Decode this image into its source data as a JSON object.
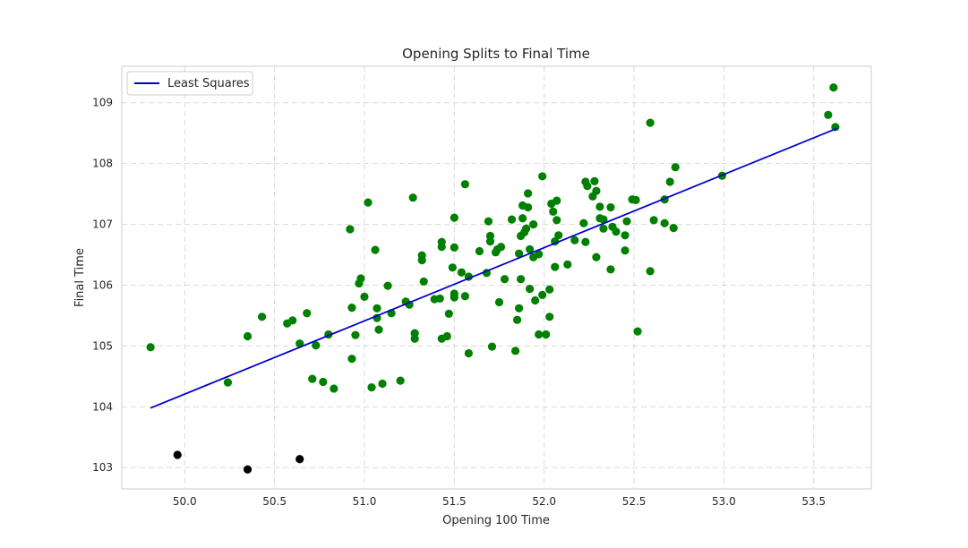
{
  "chart_data": {
    "type": "scatter",
    "title": "Opening Splits to Final Time",
    "xlabel": "Opening 100 Time",
    "ylabel": "Final Time",
    "xlim": [
      49.65,
      53.82
    ],
    "ylim": [
      102.65,
      109.6
    ],
    "xticks": [
      "50.0",
      "50.5",
      "51.0",
      "51.5",
      "52.0",
      "52.5",
      "53.0",
      "53.5"
    ],
    "yticks": [
      "103",
      "104",
      "105",
      "106",
      "107",
      "108",
      "109"
    ],
    "grid": true,
    "legend": {
      "position": "top-left",
      "entries": [
        "Least Squares"
      ]
    },
    "colors": {
      "points": "#008000",
      "outliers": "#000000",
      "fit": "#0000cd",
      "grid": "#d9d9d9",
      "spine": "#cccccc"
    },
    "fit_line": {
      "name": "Least Squares",
      "x": [
        49.81,
        53.63
      ],
      "y": [
        103.98,
        108.58
      ]
    },
    "points": [
      [
        49.81,
        104.98
      ],
      [
        50.24,
        104.4
      ],
      [
        50.35,
        105.16
      ],
      [
        50.43,
        105.48
      ],
      [
        50.57,
        105.37
      ],
      [
        50.6,
        105.42
      ],
      [
        50.64,
        105.04
      ],
      [
        50.68,
        105.54
      ],
      [
        50.71,
        104.46
      ],
      [
        50.73,
        105.01
      ],
      [
        50.77,
        104.41
      ],
      [
        50.8,
        105.19
      ],
      [
        50.83,
        104.3
      ],
      [
        50.92,
        106.92
      ],
      [
        50.93,
        105.63
      ],
      [
        50.93,
        104.79
      ],
      [
        50.95,
        105.18
      ],
      [
        50.97,
        106.03
      ],
      [
        50.98,
        106.11
      ],
      [
        51.0,
        105.81
      ],
      [
        51.02,
        107.36
      ],
      [
        51.04,
        104.32
      ],
      [
        51.06,
        106.58
      ],
      [
        51.07,
        105.62
      ],
      [
        51.07,
        105.46
      ],
      [
        51.08,
        105.27
      ],
      [
        51.1,
        104.38
      ],
      [
        51.13,
        105.99
      ],
      [
        51.15,
        105.54
      ],
      [
        51.2,
        104.43
      ],
      [
        51.23,
        105.73
      ],
      [
        51.25,
        105.68
      ],
      [
        51.27,
        107.44
      ],
      [
        51.28,
        105.21
      ],
      [
        51.28,
        105.12
      ],
      [
        51.32,
        106.49
      ],
      [
        51.32,
        106.41
      ],
      [
        51.33,
        106.06
      ],
      [
        51.39,
        105.77
      ],
      [
        51.42,
        105.78
      ],
      [
        51.43,
        106.71
      ],
      [
        51.43,
        106.63
      ],
      [
        51.43,
        105.12
      ],
      [
        51.46,
        105.16
      ],
      [
        51.47,
        105.53
      ],
      [
        51.49,
        106.29
      ],
      [
        51.5,
        105.86
      ],
      [
        51.5,
        107.11
      ],
      [
        51.5,
        106.62
      ],
      [
        51.5,
        105.8
      ],
      [
        51.54,
        106.21
      ],
      [
        51.56,
        105.82
      ],
      [
        51.56,
        107.66
      ],
      [
        51.58,
        104.88
      ],
      [
        51.58,
        106.14
      ],
      [
        51.64,
        106.56
      ],
      [
        51.68,
        106.2
      ],
      [
        51.69,
        107.05
      ],
      [
        51.7,
        106.81
      ],
      [
        51.7,
        106.72
      ],
      [
        51.71,
        104.99
      ],
      [
        51.73,
        106.54
      ],
      [
        51.74,
        106.59
      ],
      [
        51.75,
        105.72
      ],
      [
        51.76,
        106.63
      ],
      [
        51.78,
        106.1
      ],
      [
        51.82,
        107.08
      ],
      [
        51.84,
        104.92
      ],
      [
        51.85,
        105.43
      ],
      [
        51.86,
        105.62
      ],
      [
        51.86,
        106.52
      ],
      [
        51.87,
        106.1
      ],
      [
        51.87,
        106.81
      ],
      [
        51.88,
        107.1
      ],
      [
        51.88,
        107.31
      ],
      [
        51.89,
        106.87
      ],
      [
        51.9,
        106.93
      ],
      [
        51.91,
        107.28
      ],
      [
        51.91,
        107.51
      ],
      [
        51.92,
        106.59
      ],
      [
        51.92,
        105.94
      ],
      [
        51.94,
        106.46
      ],
      [
        51.94,
        107.0
      ],
      [
        51.95,
        105.75
      ],
      [
        51.97,
        106.51
      ],
      [
        51.97,
        105.19
      ],
      [
        51.99,
        105.84
      ],
      [
        51.99,
        107.79
      ],
      [
        52.01,
        105.19
      ],
      [
        52.03,
        105.48
      ],
      [
        52.03,
        105.93
      ],
      [
        52.04,
        107.34
      ],
      [
        52.05,
        107.21
      ],
      [
        52.06,
        106.3
      ],
      [
        52.06,
        106.72
      ],
      [
        52.07,
        107.07
      ],
      [
        52.07,
        107.39
      ],
      [
        52.08,
        106.82
      ],
      [
        52.13,
        106.34
      ],
      [
        52.17,
        106.74
      ],
      [
        52.22,
        107.02
      ],
      [
        52.23,
        106.71
      ],
      [
        52.23,
        107.7
      ],
      [
        52.24,
        107.63
      ],
      [
        52.27,
        107.46
      ],
      [
        52.28,
        107.71
      ],
      [
        52.29,
        106.46
      ],
      [
        52.29,
        107.55
      ],
      [
        52.31,
        107.29
      ],
      [
        52.31,
        107.1
      ],
      [
        52.33,
        107.08
      ],
      [
        52.33,
        106.93
      ],
      [
        52.37,
        106.26
      ],
      [
        52.37,
        107.28
      ],
      [
        52.38,
        106.96
      ],
      [
        52.4,
        106.88
      ],
      [
        52.45,
        106.57
      ],
      [
        52.45,
        106.82
      ],
      [
        52.46,
        107.05
      ],
      [
        52.49,
        107.41
      ],
      [
        52.51,
        107.4
      ],
      [
        52.52,
        105.24
      ],
      [
        52.59,
        108.67
      ],
      [
        52.59,
        106.23
      ],
      [
        52.61,
        107.07
      ],
      [
        52.67,
        107.02
      ],
      [
        52.67,
        107.41
      ],
      [
        52.7,
        107.7
      ],
      [
        52.72,
        106.94
      ],
      [
        52.73,
        107.94
      ],
      [
        52.99,
        107.8
      ],
      [
        53.58,
        108.8
      ],
      [
        53.61,
        109.25
      ],
      [
        53.62,
        108.6
      ]
    ],
    "outlier_points": [
      [
        49.96,
        103.21
      ],
      [
        50.35,
        102.97
      ],
      [
        50.64,
        103.14
      ]
    ]
  }
}
